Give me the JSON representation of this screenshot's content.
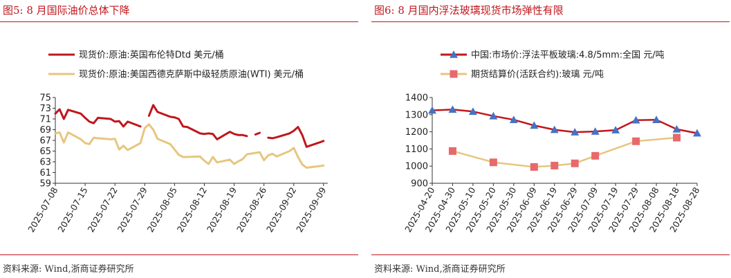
{
  "charts": [
    {
      "title": "图5:   8 月国际油价总体下降",
      "source": "资料来源:  Wind,浙商证券研究所",
      "chart_data": {
        "type": "line",
        "title": "8 月国际油价总体下降",
        "ylim": [
          59,
          75
        ],
        "yticks": [
          59,
          61,
          63,
          65,
          67,
          69,
          71,
          73,
          75
        ],
        "x_type": "date",
        "x_range": [
          "2025-07-08",
          "2025-09-10"
        ],
        "xticks": [
          "2025-07-08",
          "2025-07-15",
          "2025-07-22",
          "2025-07-29",
          "2025-08-05",
          "2025-08-12",
          "2025-08-19",
          "2025-08-26",
          "2025-09-02",
          "2025-09-09"
        ],
        "grid": false,
        "legend_position": "top-left",
        "series": [
          {
            "name": "现货价:原油:英国布伦特Dtd 美元/桶",
            "color": "#c0161c",
            "segments": [
              [
                [
                  "2025-07-08",
                  72.0
                ],
                [
                  "2025-07-09",
                  72.8
                ],
                [
                  "2025-07-10",
                  71.0
                ],
                [
                  "2025-07-11",
                  72.7
                ],
                [
                  "2025-07-14",
                  72.0
                ],
                [
                  "2025-07-15",
                  71.2
                ],
                [
                  "2025-07-16",
                  70.5
                ],
                [
                  "2025-07-17",
                  70.2
                ],
                [
                  "2025-07-18",
                  71.2
                ],
                [
                  "2025-07-21",
                  71.0
                ],
                [
                  "2025-07-22",
                  70.5
                ],
                [
                  "2025-07-23",
                  70.6
                ],
                [
                  "2025-07-24",
                  69.6
                ],
                [
                  "2025-07-25",
                  70.5
                ],
                [
                  "2025-07-28",
                  69.6
                ]
              ],
              [
                [
                  "2025-07-30",
                  71.6
                ],
                [
                  "2025-07-31",
                  73.6
                ],
                [
                  "2025-08-01",
                  72.3
                ],
                [
                  "2025-08-04",
                  71.4
                ],
                [
                  "2025-08-05",
                  71.3
                ],
                [
                  "2025-08-06",
                  71.0
                ],
                [
                  "2025-08-07",
                  69.6
                ],
                [
                  "2025-08-08",
                  69.5
                ],
                [
                  "2025-08-11",
                  68.3
                ],
                [
                  "2025-08-12",
                  68.2
                ],
                [
                  "2025-08-13",
                  68.3
                ],
                [
                  "2025-08-14",
                  68.2
                ],
                [
                  "2025-08-15",
                  67.2
                ],
                [
                  "2025-08-18",
                  68.6
                ],
                [
                  "2025-08-19",
                  68.2
                ],
                [
                  "2025-08-20",
                  68.0
                ],
                [
                  "2025-08-21",
                  68.0
                ],
                [
                  "2025-08-22",
                  67.8
                ]
              ],
              [
                [
                  "2025-08-24",
                  68.1
                ],
                [
                  "2025-08-25",
                  68.4
                ]
              ],
              [
                [
                  "2025-08-27",
                  67.5
                ],
                [
                  "2025-08-28",
                  67.4
                ],
                [
                  "2025-08-29",
                  67.6
                ],
                [
                  "2025-09-01",
                  68.3
                ],
                [
                  "2025-09-02",
                  68.8
                ],
                [
                  "2025-09-03",
                  69.5
                ],
                [
                  "2025-09-04",
                  68.0
                ],
                [
                  "2025-09-05",
                  65.8
                ],
                [
                  "2025-09-08",
                  66.6
                ],
                [
                  "2025-09-09",
                  66.9
                ]
              ]
            ]
          },
          {
            "name": "现货价:原油:美国西德克萨斯中级轻质原油(WTI) 美元/桶",
            "color": "#e6c67e",
            "segments": [
              [
                [
                  "2025-07-08",
                  68.3
                ],
                [
                  "2025-07-09",
                  68.5
                ],
                [
                  "2025-07-10",
                  66.6
                ],
                [
                  "2025-07-11",
                  68.5
                ],
                [
                  "2025-07-14",
                  67.2
                ],
                [
                  "2025-07-15",
                  66.5
                ],
                [
                  "2025-07-16",
                  66.3
                ],
                [
                  "2025-07-17",
                  67.5
                ],
                [
                  "2025-07-18",
                  67.4
                ],
                [
                  "2025-07-21",
                  67.2
                ],
                [
                  "2025-07-22",
                  67.3
                ],
                [
                  "2025-07-23",
                  65.3
                ],
                [
                  "2025-07-24",
                  66.0
                ],
                [
                  "2025-07-25",
                  65.2
                ],
                [
                  "2025-07-28",
                  66.5
                ],
                [
                  "2025-07-29",
                  69.3
                ],
                [
                  "2025-07-30",
                  70.0
                ],
                [
                  "2025-07-31",
                  69.0
                ],
                [
                  "2025-08-01",
                  67.3
                ],
                [
                  "2025-08-04",
                  66.3
                ],
                [
                  "2025-08-05",
                  65.3
                ],
                [
                  "2025-08-06",
                  64.3
                ],
                [
                  "2025-08-07",
                  63.9
                ],
                [
                  "2025-08-08",
                  63.9
                ],
                [
                  "2025-08-11",
                  64.0
                ],
                [
                  "2025-08-12",
                  63.2
                ],
                [
                  "2025-08-13",
                  62.6
                ],
                [
                  "2025-08-14",
                  63.9
                ],
                [
                  "2025-08-15",
                  62.9
                ],
                [
                  "2025-08-18",
                  63.4
                ],
                [
                  "2025-08-19",
                  62.6
                ],
                [
                  "2025-08-20",
                  63.1
                ],
                [
                  "2025-08-21",
                  63.5
                ],
                [
                  "2025-08-22",
                  64.4
                ],
                [
                  "2025-08-25",
                  64.8
                ],
                [
                  "2025-08-26",
                  63.3
                ],
                [
                  "2025-08-27",
                  64.2
                ],
                [
                  "2025-08-28",
                  64.5
                ],
                [
                  "2025-08-29",
                  64.0
                ],
                [
                  "2025-09-01",
                  65.0
                ],
                [
                  "2025-09-02",
                  65.6
                ],
                [
                  "2025-09-03",
                  63.9
                ],
                [
                  "2025-09-04",
                  62.5
                ],
                [
                  "2025-09-05",
                  61.9
                ],
                [
                  "2025-09-08",
                  62.2
                ],
                [
                  "2025-09-09",
                  62.3
                ]
              ]
            ]
          }
        ]
      }
    },
    {
      "title": "图6:   8 月国内浮法玻璃现货市场弹性有限",
      "source": "资料来源:  Wind,浙商证券研究所",
      "chart_data": {
        "type": "line",
        "title": "8 月国内浮法玻璃现货市场弹性有限",
        "ylim": [
          900,
          1400
        ],
        "yticks": [
          900,
          1000,
          1100,
          1200,
          1300,
          1400
        ],
        "x_type": "date",
        "x_range": [
          "2025-04-20",
          "2025-08-28"
        ],
        "xticks": [
          "2025-04-20",
          "2025-04-30",
          "2025-05-10",
          "2025-05-20",
          "2025-05-30",
          "2025-06-09",
          "2025-06-19",
          "2025-06-29",
          "2025-07-09",
          "2025-07-19",
          "2025-07-29",
          "2025-08-08",
          "2025-08-18",
          "2025-08-28"
        ],
        "grid": false,
        "legend_position": "top-left",
        "series": [
          {
            "name": "中国:市场价:浮法平板玻璃:4.8/5mm:全国 元/吨",
            "color": "#c0161c",
            "marker": "triangle",
            "marker_color": "#4472c4",
            "points": [
              [
                "2025-04-20",
                1325
              ],
              [
                "2025-04-30",
                1330
              ],
              [
                "2025-05-10",
                1318
              ],
              [
                "2025-05-20",
                1292
              ],
              [
                "2025-05-30",
                1270
              ],
              [
                "2025-06-09",
                1237
              ],
              [
                "2025-06-19",
                1212
              ],
              [
                "2025-06-29",
                1198
              ],
              [
                "2025-07-09",
                1202
              ],
              [
                "2025-07-19",
                1210
              ],
              [
                "2025-07-29",
                1268
              ],
              [
                "2025-08-08",
                1270
              ],
              [
                "2025-08-18",
                1215
              ],
              [
                "2025-08-28",
                1192
              ]
            ]
          },
          {
            "name": "期货结算价(活跃合约):玻璃 元/吨",
            "color": "#e6c67e",
            "marker": "square",
            "marker_color": "#e8696b",
            "points": [
              [
                "2025-04-30",
                1088
              ],
              [
                "2025-05-20",
                1022
              ],
              [
                "2025-06-09",
                995
              ],
              [
                "2025-06-19",
                1003
              ],
              [
                "2025-06-29",
                1016
              ],
              [
                "2025-07-09",
                1060
              ],
              [
                "2025-07-29",
                1145
              ],
              [
                "2025-08-18",
                1166
              ]
            ]
          }
        ]
      }
    }
  ]
}
